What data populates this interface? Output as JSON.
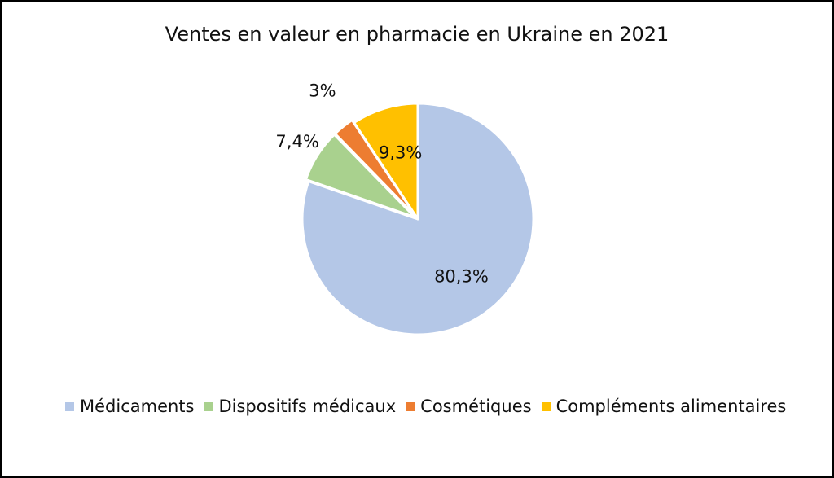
{
  "chart_data": {
    "type": "pie",
    "title": "Ventes en valeur en pharmacie en Ukraine en 2021",
    "categories": [
      "Médicaments",
      "Dispositifs médicaux",
      "Cosmétiques",
      "Compléments alimentaires"
    ],
    "values": [
      80.3,
      7.4,
      3.0,
      9.3
    ],
    "data_labels": [
      "80,3%",
      "7,4%",
      "3%",
      "9,3%"
    ],
    "colors": [
      "#B4C7E7",
      "#A9D18E",
      "#ED7D31",
      "#FFC000"
    ],
    "start_angle_deg": 0,
    "direction": "clockwise",
    "legend_position": "bottom"
  }
}
